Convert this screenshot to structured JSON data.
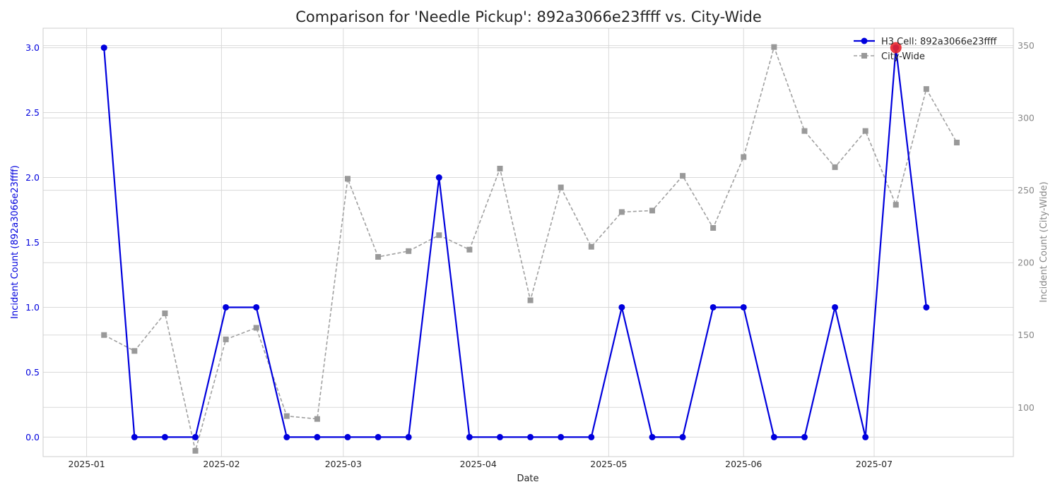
{
  "chart_data": {
    "type": "line",
    "title": "Comparison for 'Needle Pickup': 892a3066e23ffff vs. City-Wide",
    "xlabel": "Date",
    "ylabel_left": "Incident Count (892a3066e23ffff)",
    "ylabel_right": "Incident Count (City-Wide)",
    "x_ticks": [
      "2025-01",
      "2025-02",
      "2025-03",
      "2025-04",
      "2025-05",
      "2025-06",
      "2025-07"
    ],
    "y_left_ticks": [
      "0.0",
      "0.5",
      "1.0",
      "1.5",
      "2.0",
      "2.5",
      "3.0"
    ],
    "y_right_ticks": [
      "100",
      "150",
      "200",
      "250",
      "300",
      "350"
    ],
    "xlim": [
      "2024-12-22",
      "2025-08-02"
    ],
    "ylim_left": [
      -0.15,
      3.15
    ],
    "ylim_right": [
      66,
      362
    ],
    "grid": true,
    "legend_position": "upper right",
    "series": [
      {
        "name": "H3 Cell: 892a3066e23ffff",
        "axis": "left",
        "color": "#0000dd",
        "style": "solid",
        "marker": "circle",
        "x": [
          "2025-01-05",
          "2025-01-12",
          "2025-01-19",
          "2025-01-26",
          "2025-02-02",
          "2025-02-09",
          "2025-02-16",
          "2025-02-23",
          "2025-03-02",
          "2025-03-09",
          "2025-03-16",
          "2025-03-23",
          "2025-03-30",
          "2025-04-06",
          "2025-04-13",
          "2025-04-20",
          "2025-04-27",
          "2025-05-04",
          "2025-05-11",
          "2025-05-18",
          "2025-05-25",
          "2025-06-01",
          "2025-06-08",
          "2025-06-15",
          "2025-06-22",
          "2025-06-29",
          "2025-07-06",
          "2025-07-13"
        ],
        "values": [
          3,
          0,
          0,
          0,
          1,
          1,
          0,
          0,
          0,
          0,
          0,
          2,
          0,
          0,
          0,
          0,
          0,
          1,
          0,
          0,
          1,
          1,
          0,
          0,
          1,
          0,
          3,
          1
        ]
      },
      {
        "name": "City-Wide",
        "axis": "right",
        "color": "#a0a0a0",
        "style": "dashed",
        "marker": "square",
        "x": [
          "2025-01-05",
          "2025-01-12",
          "2025-01-19",
          "2025-01-26",
          "2025-02-02",
          "2025-02-09",
          "2025-02-16",
          "2025-02-23",
          "2025-03-02",
          "2025-03-09",
          "2025-03-16",
          "2025-03-23",
          "2025-03-30",
          "2025-04-06",
          "2025-04-13",
          "2025-04-20",
          "2025-04-27",
          "2025-05-04",
          "2025-05-11",
          "2025-05-18",
          "2025-05-25",
          "2025-06-01",
          "2025-06-08",
          "2025-06-15",
          "2025-06-22",
          "2025-06-29",
          "2025-07-06",
          "2025-07-13",
          "2025-07-20"
        ],
        "values": [
          150,
          139,
          165,
          70,
          147,
          155,
          94,
          92,
          258,
          204,
          208,
          219,
          209,
          265,
          174,
          252,
          211,
          235,
          236,
          260,
          224,
          273,
          349,
          291,
          266,
          291,
          240,
          320,
          283
        ]
      }
    ],
    "highlight": {
      "date": "2025-07-06",
      "value": 3,
      "axis": "left",
      "color": "#e8262b"
    }
  }
}
